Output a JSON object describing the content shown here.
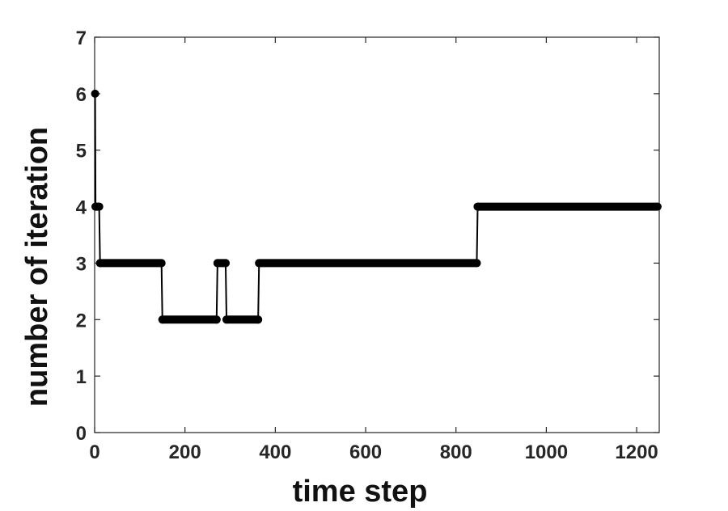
{
  "chart_data": {
    "type": "line",
    "xlabel": "time step",
    "ylabel": "number of iteration",
    "x": [
      1,
      2,
      10,
      12,
      148,
      150,
      270,
      272,
      290,
      292,
      362,
      364,
      846,
      848,
      1246
    ],
    "series": [
      {
        "color": "#000000",
        "values": [
          6,
          4,
          4,
          3,
          3,
          2,
          2,
          3,
          3,
          2,
          2,
          3,
          3,
          4,
          4
        ]
      }
    ],
    "xlim": [
      0,
      1250
    ],
    "xticks": [
      0,
      200,
      400,
      600,
      800,
      1000,
      1200
    ],
    "ylim": [
      0,
      7
    ],
    "yticks": [
      0,
      1,
      2,
      3,
      4,
      5,
      6,
      7
    ]
  }
}
